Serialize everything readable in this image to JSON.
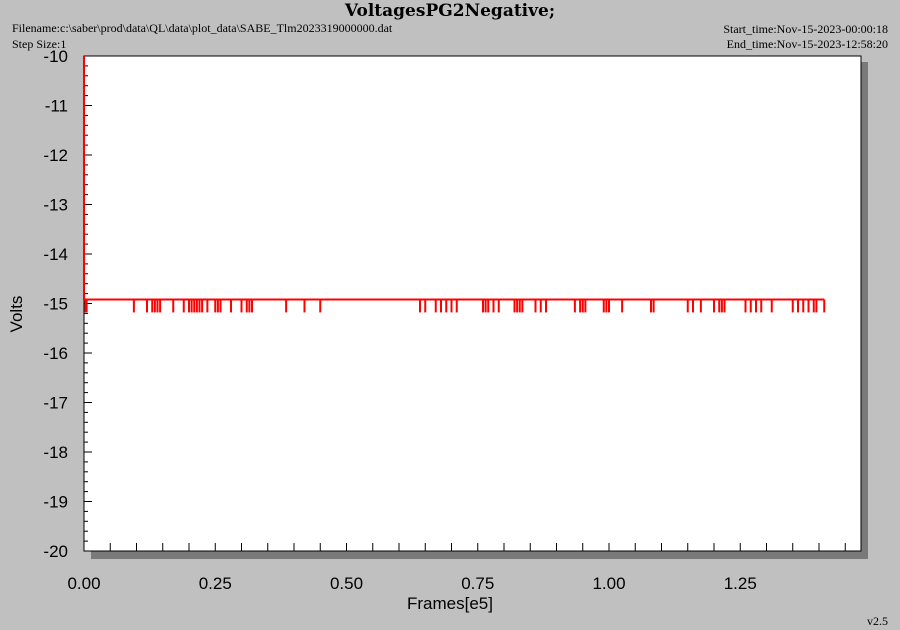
{
  "header": {
    "title": "VoltagesPG2Negative;",
    "filename": "Filename:c:\\saber\\prod\\data\\QL\\data\\plot_data\\SABE_Tlm2023319000000.dat",
    "step_size": "Step Size:1",
    "start_time": "Start_time:Nov-15-2023-00:00:18",
    "end_time": "End_time:Nov-15-2023-12:58:20"
  },
  "version": "v2.5",
  "chart_data": {
    "type": "line",
    "title": "VoltagesPG2Negative;",
    "xlabel": "Frames[e5]",
    "ylabel": "Volts",
    "xlim": [
      0,
      1.48
    ],
    "ylim": [
      -20,
      -10
    ],
    "x_ticks": [
      "0.00",
      "0.25",
      "0.50",
      "0.75",
      "1.00",
      "1.25"
    ],
    "y_ticks": [
      "-10",
      "-11",
      "-12",
      "-13",
      "-14",
      "-15",
      "-16",
      "-17",
      "-18",
      "-19",
      "-20"
    ],
    "line_color": "#ff0000",
    "series": [
      {
        "baseline": -14.92,
        "x_range": [
          0.0,
          1.41
        ],
        "start_spike": [
          -10,
          -14.92
        ],
        "dip_value": -15.18,
        "dip_x": [
          0.003,
          0.005,
          0.095,
          0.12,
          0.13,
          0.135,
          0.14,
          0.145,
          0.17,
          0.19,
          0.2,
          0.205,
          0.21,
          0.215,
          0.22,
          0.225,
          0.235,
          0.25,
          0.255,
          0.26,
          0.28,
          0.3,
          0.31,
          0.315,
          0.32,
          0.385,
          0.42,
          0.45,
          0.64,
          0.65,
          0.67,
          0.68,
          0.69,
          0.7,
          0.71,
          0.76,
          0.765,
          0.77,
          0.78,
          0.79,
          0.82,
          0.825,
          0.83,
          0.835,
          0.86,
          0.87,
          0.88,
          0.935,
          0.945,
          0.95,
          0.955,
          0.99,
          0.995,
          1.0,
          1.025,
          1.08,
          1.085,
          1.15,
          1.16,
          1.175,
          1.2,
          1.21,
          1.215,
          1.22,
          1.26,
          1.27,
          1.28,
          1.29,
          1.31,
          1.35,
          1.36,
          1.37,
          1.38,
          1.39,
          1.395,
          1.41
        ]
      }
    ]
  }
}
